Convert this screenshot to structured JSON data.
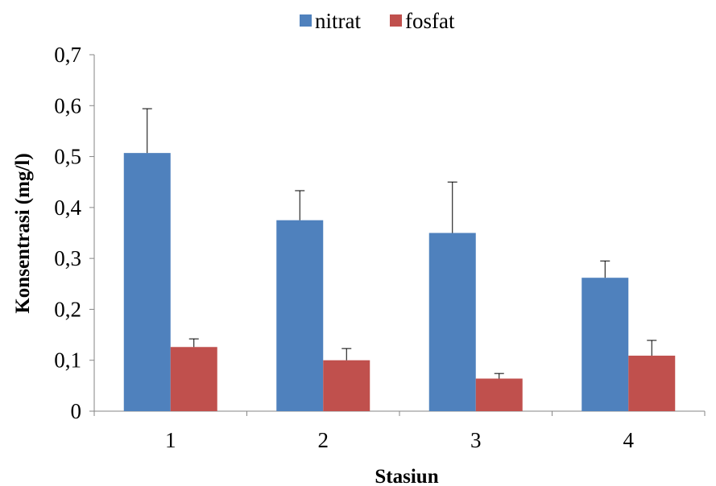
{
  "chart_data": {
    "type": "bar",
    "categories": [
      "1",
      "2",
      "3",
      "4"
    ],
    "series": [
      {
        "name": "nitrat",
        "color": "#4f81bd",
        "values": [
          0.507,
          0.375,
          0.35,
          0.262
        ],
        "errors": [
          0.087,
          0.058,
          0.1,
          0.033
        ]
      },
      {
        "name": "fosfat",
        "color": "#c0504d",
        "values": [
          0.126,
          0.1,
          0.064,
          0.109
        ],
        "errors": [
          0.016,
          0.023,
          0.01,
          0.03
        ]
      }
    ],
    "xlabel": "Stasiun",
    "ylabel": "Konsentrasi (mg/l)",
    "ylim": [
      0,
      0.7
    ],
    "yticks": [
      "0",
      "0,1",
      "0,2",
      "0,3",
      "0,4",
      "0,5",
      "0,6",
      "0,7"
    ],
    "ytick_values": [
      0,
      0.1,
      0.2,
      0.3,
      0.4,
      0.5,
      0.6,
      0.7
    ],
    "grid": false,
    "legend_position": "top-center"
  }
}
